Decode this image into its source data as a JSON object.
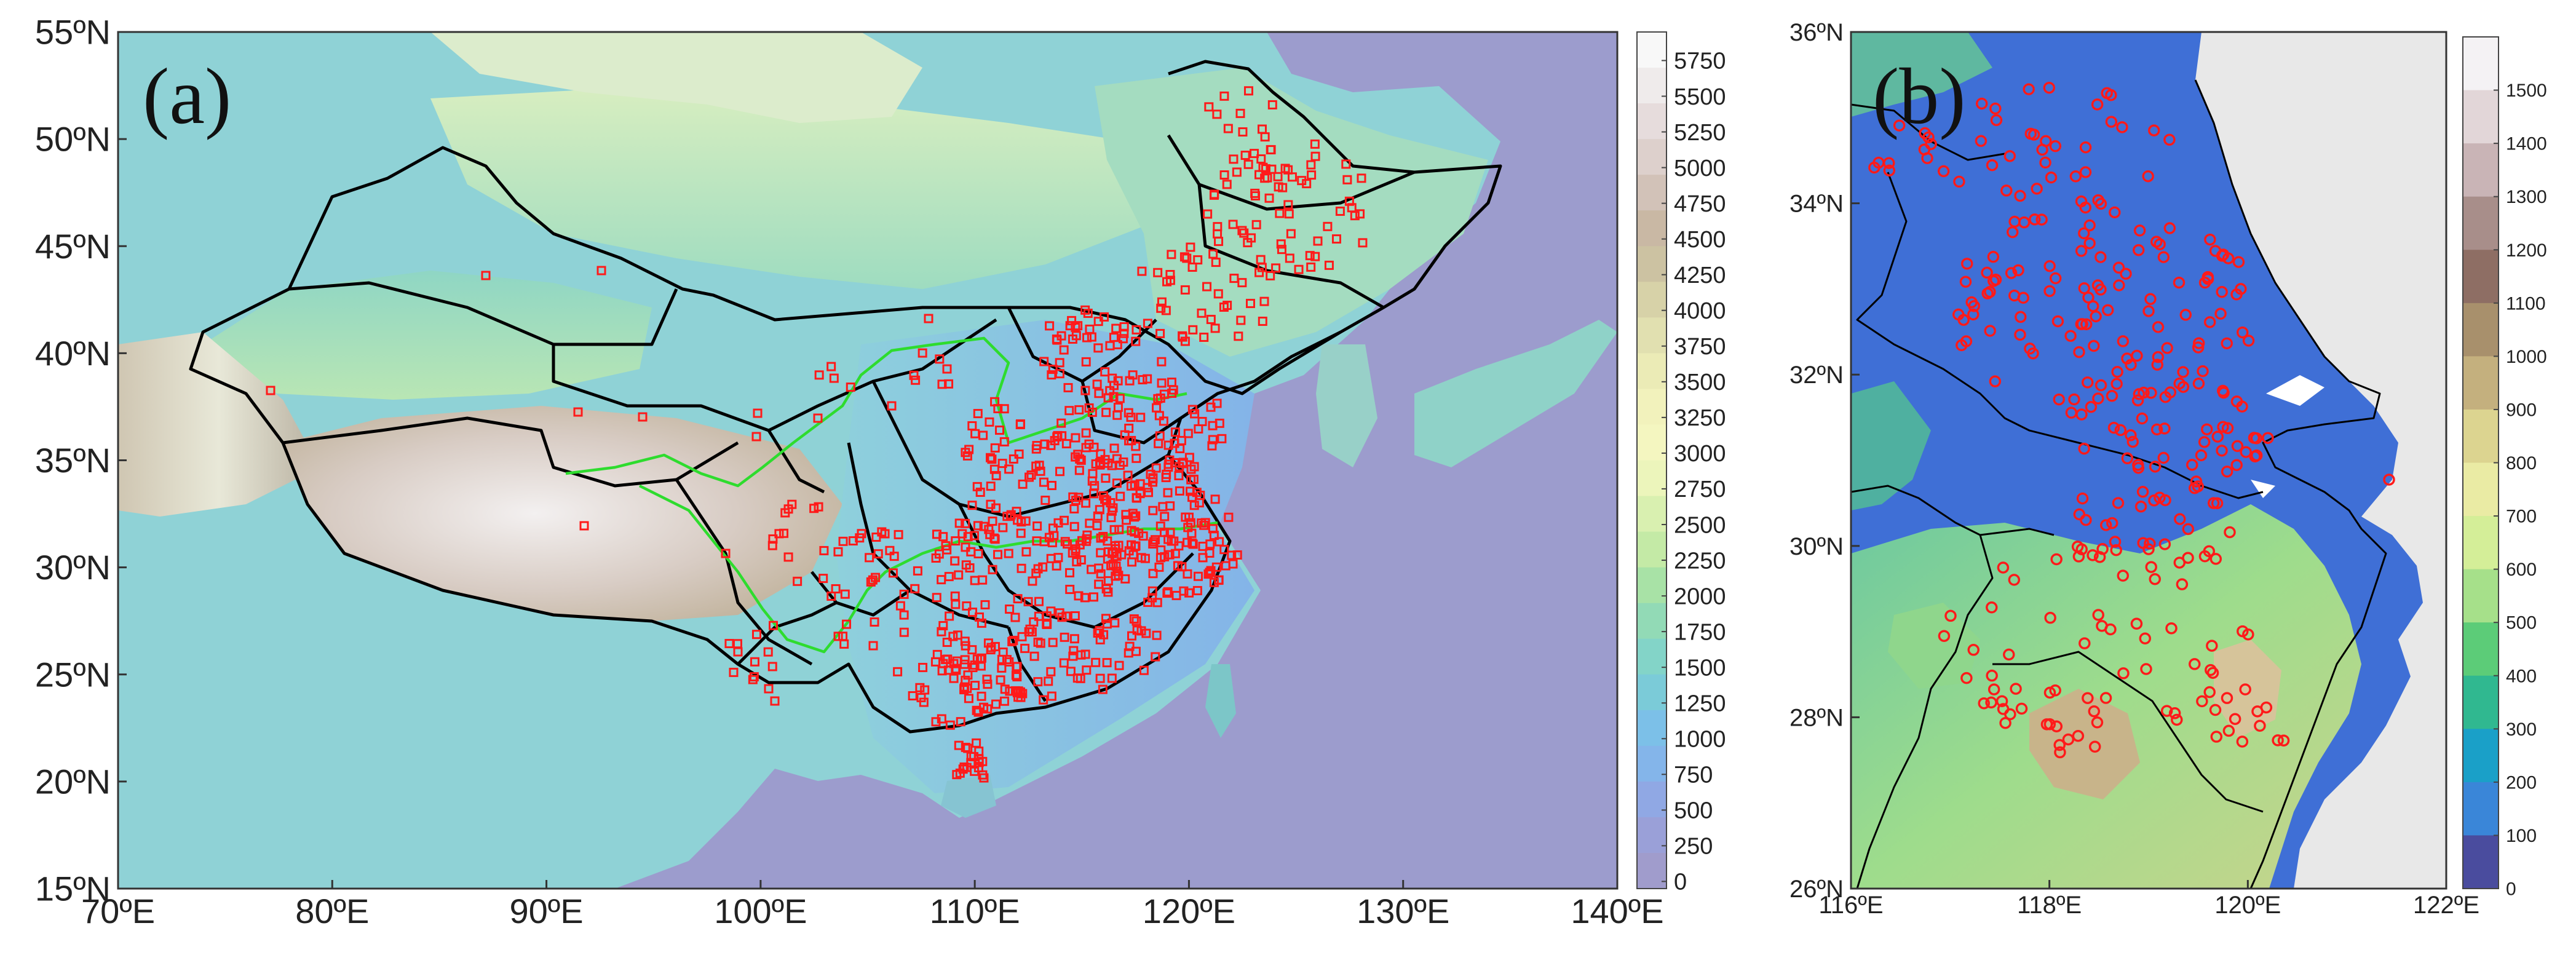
{
  "panel_a": {
    "label": "(a)",
    "lat_ticks": [
      "55ºN",
      "50ºN",
      "45ºN",
      "40ºN",
      "35ºN",
      "30ºN",
      "25ºN",
      "20ºN",
      "15ºN"
    ],
    "lon_ticks": [
      "70ºE",
      "80ºE",
      "90ºE",
      "100ºE",
      "110ºE",
      "120ºE",
      "130ºE",
      "140ºE"
    ],
    "colorbar": {
      "labels": [
        "5750",
        "5500",
        "5250",
        "5000",
        "4750",
        "4500",
        "4250",
        "4000",
        "3750",
        "3500",
        "3250",
        "3000",
        "2750",
        "2500",
        "2250",
        "2000",
        "1750",
        "1500",
        "1250",
        "1000",
        "750",
        "500",
        "250",
        "0"
      ],
      "colors": [
        "#f8f8f8",
        "#efebeb",
        "#e6dcdc",
        "#ddd0cc",
        "#d2c2b8",
        "#c9b8a4",
        "#ccc2a2",
        "#d7d2a8",
        "#e1e0b0",
        "#ebebb6",
        "#f2f2bc",
        "#f4f6c0",
        "#ecf5bb",
        "#d9f0b0",
        "#c4eaa6",
        "#a8e2a6",
        "#92dab6",
        "#83d4c8",
        "#7bcbd8",
        "#7cc0e8",
        "#84b5ea",
        "#90a8e4",
        "#9aa0d8",
        "#a09ccc"
      ]
    },
    "station_marker": "red-square",
    "colors": {
      "boundary": "#000000",
      "river": "#2edc2e",
      "station": "#ff1a1a",
      "ocean": "#9c9ccd"
    }
  },
  "panel_b": {
    "label": "(b)",
    "lat_ticks": [
      "36ºN",
      "34ºN",
      "32ºN",
      "30ºN",
      "28ºN",
      "26ºN"
    ],
    "lon_ticks": [
      "116ºE",
      "118ºE",
      "120ºE",
      "122ºE"
    ],
    "colorbar": {
      "labels": [
        "1500",
        "1400",
        "1300",
        "1200",
        "1100",
        "1000",
        "900",
        "800",
        "700",
        "600",
        "500",
        "400",
        "300",
        "200",
        "100",
        "0"
      ],
      "colors": [
        "#f4f2f4",
        "#e2d6d8",
        "#c9b4b6",
        "#a88e8a",
        "#8e6e64",
        "#a8906c",
        "#c4b07e",
        "#dcd490",
        "#eaeba4",
        "#d4ee98",
        "#a6e08a",
        "#5ccc78",
        "#30b890",
        "#1aa0c8",
        "#3a86d8",
        "#4a4c9e"
      ]
    },
    "station_marker": "red-circle",
    "colors": {
      "land_low": "#3f6fd6",
      "sea": "#e8e8e8",
      "station": "#ff1a1a"
    }
  }
}
